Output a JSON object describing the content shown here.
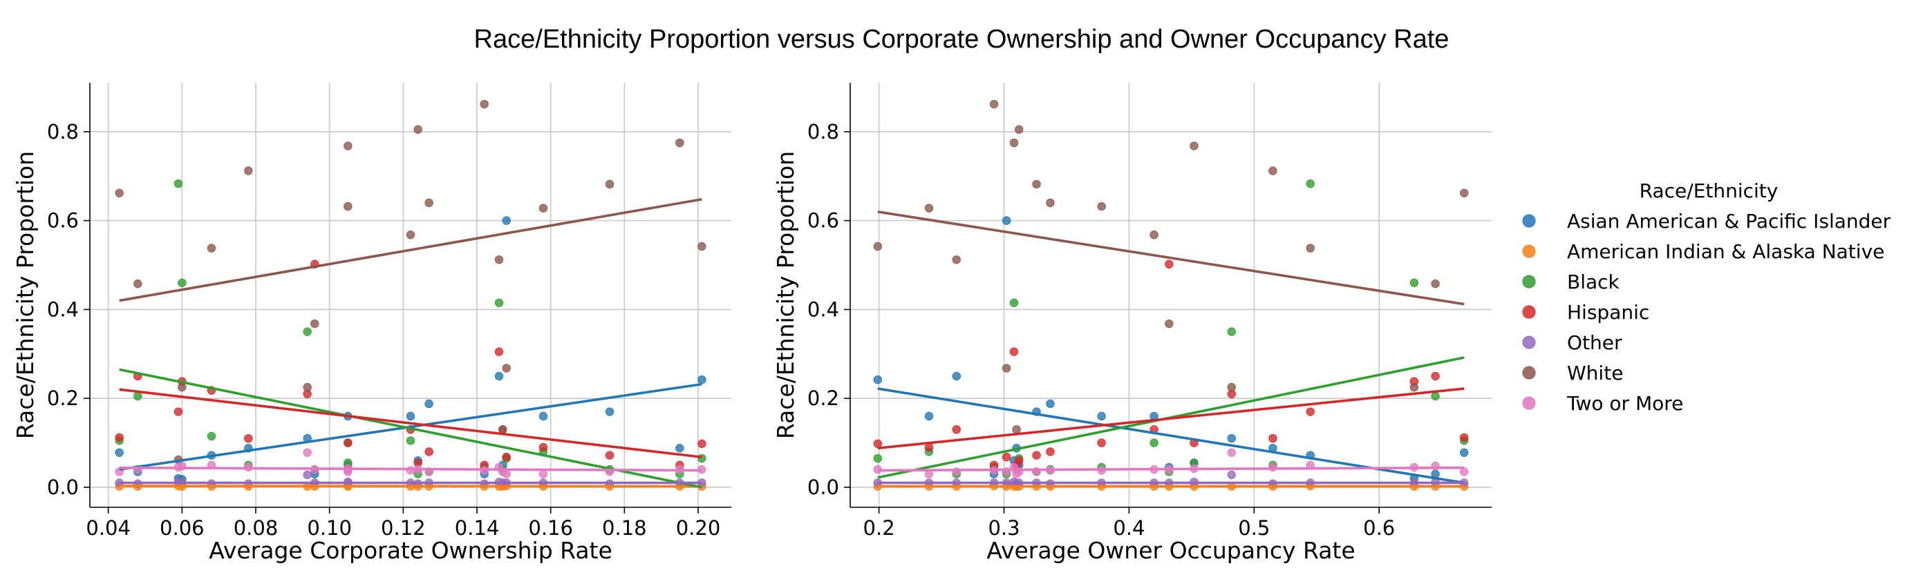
{
  "figure": {
    "title": "Race/Ethnicity Proportion versus Corporate Ownership and Owner Occupancy Rate"
  },
  "legend": {
    "title": "Race/Ethnicity",
    "placement": "right",
    "items": [
      {
        "name": "Asian American & Pacific Islander",
        "color": "#1f77b4"
      },
      {
        "name": "American Indian & Alaska Native",
        "color": "#ff7f0e"
      },
      {
        "name": "Black",
        "color": "#2ca02c"
      },
      {
        "name": "Hispanic",
        "color": "#d62728"
      },
      {
        "name": "Other",
        "color": "#9467bd"
      },
      {
        "name": "White",
        "color": "#8c564b"
      },
      {
        "name": "Two or More",
        "color": "#e377c2"
      }
    ]
  },
  "chart_data": [
    {
      "type": "scatter",
      "xlabel": "Average Corporate Ownership Rate",
      "ylabel": "Race/Ethnicity Proportion",
      "xlim": [
        0.035,
        0.209
      ],
      "ylim": [
        -0.045,
        0.91
      ],
      "xticks": [
        0.04,
        0.06,
        0.08,
        0.1,
        0.12,
        0.14,
        0.16,
        0.18,
        0.2
      ],
      "xtick_labels": [
        "0.04",
        "0.06",
        "0.08",
        "0.10",
        "0.12",
        "0.14",
        "0.16",
        "0.18",
        "0.20"
      ],
      "yticks": [
        0.0,
        0.2,
        0.4,
        0.6,
        0.8
      ],
      "ytick_labels": [
        "0.0",
        "0.2",
        "0.4",
        "0.6",
        "0.8"
      ],
      "grid": true,
      "x": [
        0.043,
        0.048,
        0.059,
        0.06,
        0.068,
        0.078,
        0.094,
        0.096,
        0.105,
        0.105,
        0.122,
        0.124,
        0.127,
        0.142,
        0.146,
        0.147,
        0.148,
        0.158,
        0.176,
        0.195,
        0.201
      ],
      "series": [
        {
          "name": "Asian American & Pacific Islander",
          "color": "#1f77b4",
          "values": [
            0.078,
            0.035,
            0.02,
            0.018,
            0.072,
            0.088,
            0.11,
            0.03,
            0.16,
            0.05,
            0.16,
            0.06,
            0.188,
            0.03,
            0.25,
            0.05,
            0.6,
            0.16,
            0.17,
            0.088,
            0.242
          ],
          "trend": [
            0.04,
            0.232
          ]
        },
        {
          "name": "American Indian & Alaska Native",
          "color": "#ff7f0e",
          "values": [
            0.002,
            0.002,
            0.003,
            0.002,
            0.002,
            0.002,
            0.002,
            0.002,
            0.002,
            0.003,
            0.002,
            0.002,
            0.002,
            0.002,
            0.002,
            0.002,
            0.003,
            0.002,
            0.002,
            0.002,
            0.002
          ],
          "trend": [
            0.003,
            0.002
          ]
        },
        {
          "name": "Black",
          "color": "#2ca02c",
          "values": [
            0.105,
            0.205,
            0.683,
            0.46,
            0.115,
            0.05,
            0.35,
            0.04,
            0.1,
            0.055,
            0.105,
            0.03,
            0.035,
            0.045,
            0.415,
            0.04,
            0.065,
            0.08,
            0.04,
            0.03,
            0.065
          ],
          "trend": [
            0.265,
            0.0
          ]
        },
        {
          "name": "Hispanic",
          "color": "#d62728",
          "values": [
            0.112,
            0.25,
            0.17,
            0.238,
            0.218,
            0.11,
            0.21,
            0.502,
            0.1,
            0.04,
            0.13,
            0.055,
            0.08,
            0.05,
            0.305,
            0.13,
            0.068,
            0.09,
            0.072,
            0.05,
            0.098
          ],
          "trend": [
            0.22,
            0.068
          ]
        },
        {
          "name": "Other",
          "color": "#9467bd",
          "values": [
            0.01,
            0.008,
            0.012,
            0.01,
            0.008,
            0.008,
            0.028,
            0.01,
            0.01,
            0.012,
            0.01,
            0.008,
            0.01,
            0.008,
            0.012,
            0.01,
            0.01,
            0.01,
            0.008,
            0.01,
            0.01
          ],
          "trend": [
            0.01,
            0.01
          ]
        },
        {
          "name": "White",
          "color": "#8c564b",
          "values": [
            0.662,
            0.458,
            0.062,
            0.225,
            0.538,
            0.712,
            0.225,
            0.368,
            0.632,
            0.768,
            0.568,
            0.805,
            0.64,
            0.862,
            0.512,
            0.13,
            0.268,
            0.628,
            0.682,
            0.775,
            0.542
          ],
          "trend": [
            0.42,
            0.648
          ]
        },
        {
          "name": "Two or More",
          "color": "#e377c2",
          "values": [
            0.035,
            0.04,
            0.045,
            0.048,
            0.05,
            0.045,
            0.078,
            0.04,
            0.035,
            0.042,
            0.038,
            0.04,
            0.035,
            0.038,
            0.045,
            0.035,
            0.03,
            0.03,
            0.035,
            0.04,
            0.04
          ],
          "trend": [
            0.044,
            0.038
          ]
        }
      ]
    },
    {
      "type": "scatter",
      "xlabel": "Average Owner Occupancy Rate",
      "ylabel": "Race/Ethnicity Proportion",
      "xlim": [
        0.177,
        0.69
      ],
      "ylim": [
        -0.045,
        0.91
      ],
      "xticks": [
        0.2,
        0.3,
        0.4,
        0.5,
        0.6
      ],
      "xtick_labels": [
        "0.2",
        "0.3",
        "0.4",
        "0.5",
        "0.6"
      ],
      "yticks": [
        0.0,
        0.2,
        0.4,
        0.6,
        0.8
      ],
      "ytick_labels": [
        "0.0",
        "0.2",
        "0.4",
        "0.6",
        "0.8"
      ],
      "grid": true,
      "x": [
        0.199,
        0.24,
        0.262,
        0.292,
        0.302,
        0.308,
        0.31,
        0.312,
        0.326,
        0.337,
        0.378,
        0.42,
        0.432,
        0.452,
        0.482,
        0.515,
        0.545,
        0.628,
        0.645,
        0.668
      ],
      "series": [
        {
          "name": "Asian American & Pacific Islander",
          "color": "#1f77b4",
          "values": [
            0.242,
            0.16,
            0.25,
            0.03,
            0.6,
            0.06,
            0.088,
            0.05,
            0.17,
            0.188,
            0.16,
            0.16,
            0.045,
            0.055,
            0.11,
            0.088,
            0.072,
            0.02,
            0.03,
            0.078
          ],
          "trend": [
            0.222,
            0.01
          ]
        },
        {
          "name": "American Indian & Alaska Native",
          "color": "#ff7f0e",
          "values": [
            0.002,
            0.002,
            0.002,
            0.003,
            0.002,
            0.002,
            0.002,
            0.002,
            0.002,
            0.002,
            0.002,
            0.002,
            0.002,
            0.002,
            0.002,
            0.002,
            0.003,
            0.002,
            0.002,
            0.002
          ],
          "trend": [
            0.002,
            0.002
          ]
        },
        {
          "name": "Black",
          "color": "#2ca02c",
          "values": [
            0.065,
            0.08,
            0.03,
            0.045,
            0.03,
            0.415,
            0.04,
            0.065,
            0.035,
            0.04,
            0.045,
            0.1,
            0.035,
            0.055,
            0.35,
            0.05,
            0.683,
            0.46,
            0.205,
            0.105
          ],
          "trend": [
            0.022,
            0.292
          ]
        },
        {
          "name": "Hispanic",
          "color": "#d62728",
          "values": [
            0.098,
            0.09,
            0.13,
            0.05,
            0.068,
            0.305,
            0.05,
            0.06,
            0.072,
            0.08,
            0.1,
            0.13,
            0.502,
            0.1,
            0.21,
            0.11,
            0.17,
            0.238,
            0.25,
            0.112
          ],
          "trend": [
            0.088,
            0.222
          ]
        },
        {
          "name": "Other",
          "color": "#9467bd",
          "values": [
            0.01,
            0.01,
            0.01,
            0.01,
            0.01,
            0.012,
            0.008,
            0.01,
            0.01,
            0.008,
            0.01,
            0.01,
            0.01,
            0.012,
            0.028,
            0.008,
            0.01,
            0.01,
            0.012,
            0.01
          ],
          "trend": [
            0.01,
            0.01
          ]
        },
        {
          "name": "White",
          "color": "#8c564b",
          "values": [
            0.542,
            0.628,
            0.512,
            0.862,
            0.268,
            0.775,
            0.13,
            0.805,
            0.682,
            0.64,
            0.632,
            0.568,
            0.368,
            0.768,
            0.225,
            0.712,
            0.538,
            0.225,
            0.458,
            0.662
          ],
          "trend": [
            0.62,
            0.412
          ]
        },
        {
          "name": "Two or More",
          "color": "#e377c2",
          "values": [
            0.04,
            0.03,
            0.035,
            0.038,
            0.035,
            0.045,
            0.03,
            0.035,
            0.035,
            0.038,
            0.038,
            0.04,
            0.04,
            0.042,
            0.078,
            0.045,
            0.05,
            0.045,
            0.048,
            0.035
          ],
          "trend": [
            0.038,
            0.044
          ]
        }
      ]
    }
  ]
}
